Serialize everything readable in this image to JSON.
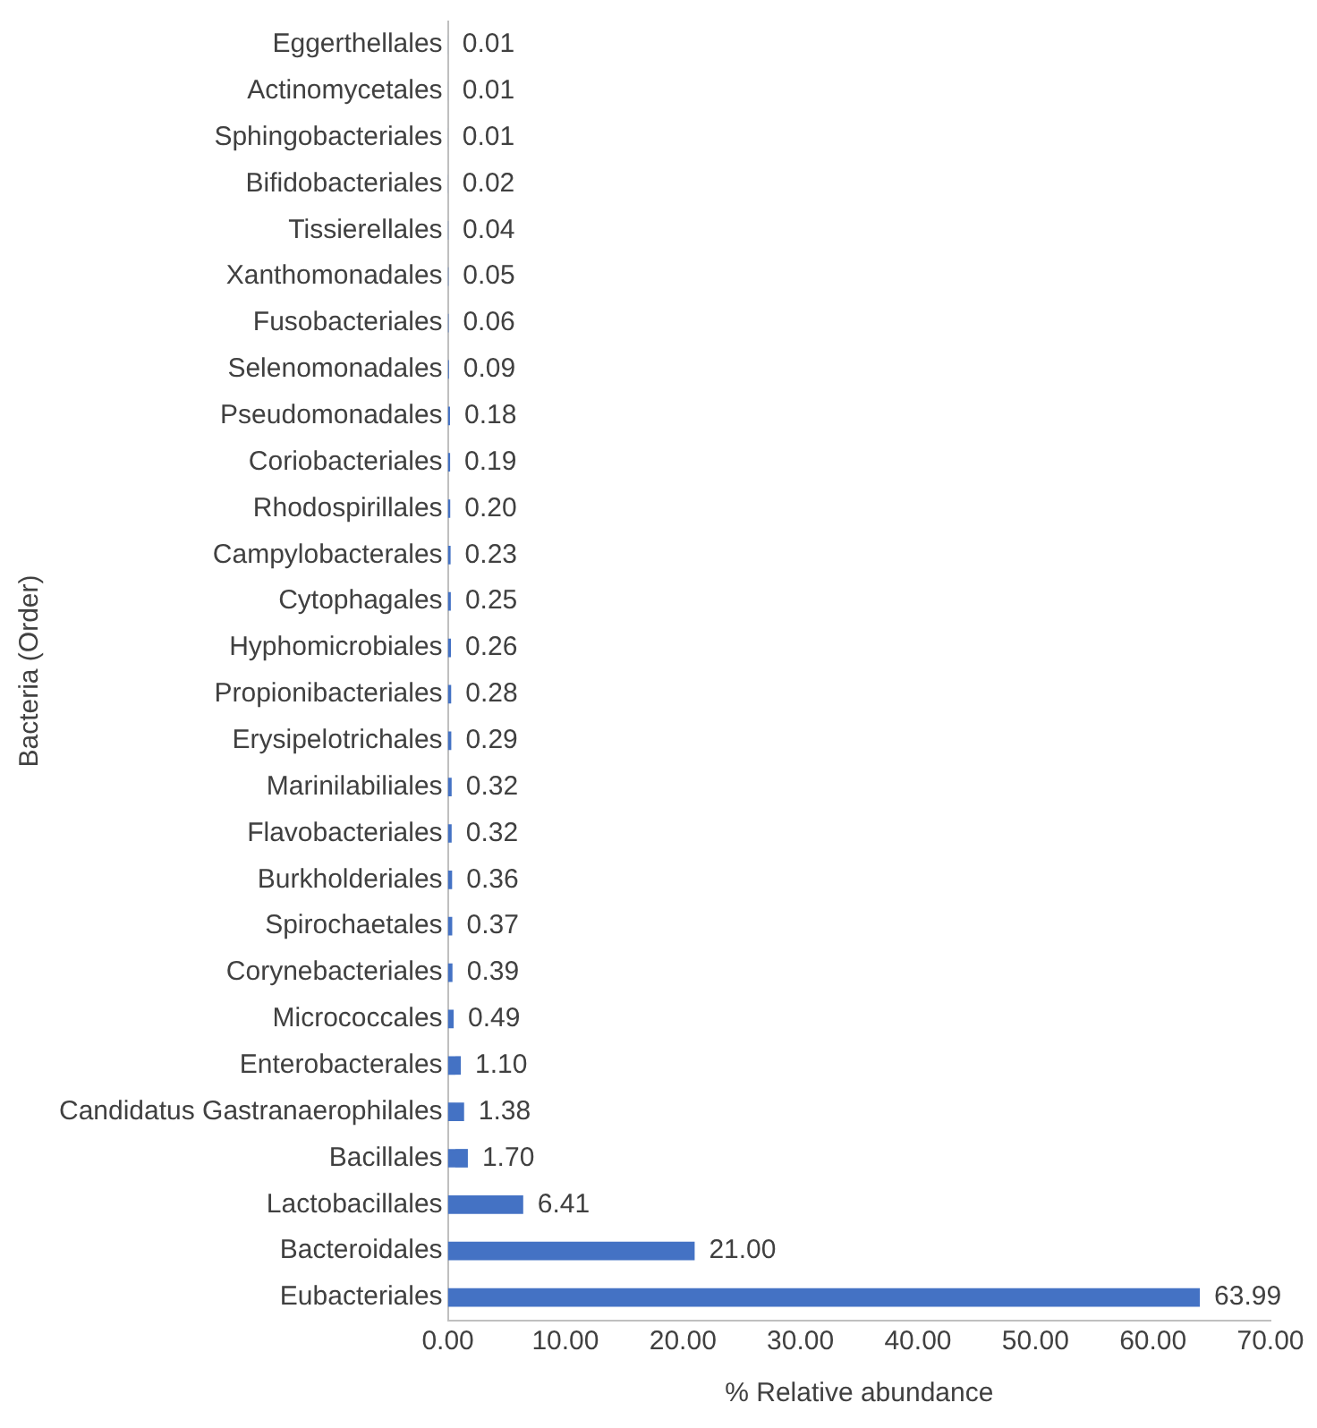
{
  "chart_data": {
    "type": "bar",
    "orientation": "horizontal",
    "xlabel": "% Relative abundance",
    "ylabel": "Bacteria (Order)",
    "categories": [
      "Eggerthellales",
      "Actinomycetales",
      "Sphingobacteriales",
      "Bifidobacteriales",
      "Tissierellales",
      "Xanthomonadales",
      "Fusobacteriales",
      "Selenomonadales",
      "Pseudomonadales",
      "Coriobacteriales",
      "Rhodospirillales",
      "Campylobacterales",
      "Cytophagales",
      "Hyphomicrobiales",
      "Propionibacteriales",
      "Erysipelotrichales",
      "Marinilabiliales",
      "Flavobacteriales",
      "Burkholderiales",
      "Spirochaetales",
      "Corynebacteriales",
      "Micrococcales",
      "Enterobacterales",
      "Candidatus Gastranaerophilales",
      "Bacillales",
      "Lactobacillales",
      "Bacteroidales",
      "Eubacteriales"
    ],
    "values": [
      0.01,
      0.01,
      0.01,
      0.02,
      0.04,
      0.05,
      0.06,
      0.09,
      0.18,
      0.19,
      0.2,
      0.23,
      0.25,
      0.26,
      0.28,
      0.29,
      0.32,
      0.32,
      0.36,
      0.37,
      0.39,
      0.49,
      1.1,
      1.38,
      1.7,
      6.41,
      21,
      63.99
    ],
    "value_labels": [
      "0.01",
      "0.01",
      "0.01",
      "0.02",
      "0.04",
      "0.05",
      "0.06",
      "0.09",
      "0.18",
      "0.19",
      "0.20",
      "0.23",
      "0.25",
      "0.26",
      "0.28",
      "0.29",
      "0.32",
      "0.32",
      "0.36",
      "0.37",
      "0.39",
      "0.49",
      "1.10",
      "1.38",
      "1.70",
      "6.41",
      "21.00",
      "63.99"
    ],
    "color": "#4472c4",
    "xlim": [
      0,
      70
    ],
    "xticks": [
      {
        "value": 0,
        "label": "0.00"
      },
      {
        "value": 10,
        "label": "10.00"
      },
      {
        "value": 20,
        "label": "20.00"
      },
      {
        "value": 30,
        "label": "30.00"
      },
      {
        "value": 40,
        "label": "40.00"
      },
      {
        "value": 50,
        "label": "50.00"
      },
      {
        "value": 60,
        "label": "60.00"
      },
      {
        "value": 70,
        "label": "70.00"
      }
    ],
    "grid": false,
    "legend": false
  }
}
